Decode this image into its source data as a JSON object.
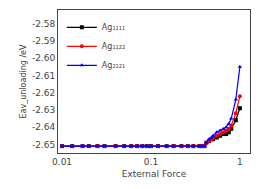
{
  "chart_data": {
    "type": "line",
    "xlabel": "External Force",
    "ylabel": "Eav_unloading /eV",
    "x": [
      0.01,
      0.013,
      0.017,
      0.02,
      0.025,
      0.03,
      0.04,
      0.05,
      0.06,
      0.07,
      0.08,
      0.09,
      0.1,
      0.12,
      0.15,
      0.18,
      0.22,
      0.26,
      0.3,
      0.35,
      0.38,
      0.4,
      0.42,
      0.45,
      0.48,
      0.5,
      0.55,
      0.6,
      0.65,
      0.7,
      0.75,
      0.8,
      0.9,
      1.0
    ],
    "series": [
      {
        "name": "Ag₁₁₁₁",
        "color": "black",
        "marker": "square",
        "values": [
          -2.651,
          -2.651,
          -2.651,
          -2.651,
          -2.651,
          -2.651,
          -2.651,
          -2.651,
          -2.651,
          -2.651,
          -2.651,
          -2.651,
          -2.651,
          -2.651,
          -2.651,
          -2.651,
          -2.651,
          -2.651,
          -2.651,
          -2.651,
          -2.651,
          -2.651,
          -2.649,
          -2.648,
          -2.647,
          -2.647,
          -2.646,
          -2.645,
          -2.644,
          -2.644,
          -2.643,
          -2.641,
          -2.636,
          -2.629
        ]
      },
      {
        "name": "Ag₁₁₂₂",
        "color": "red",
        "marker": "circle",
        "values": [
          -2.651,
          -2.651,
          -2.651,
          -2.651,
          -2.651,
          -2.651,
          -2.651,
          -2.651,
          -2.651,
          -2.651,
          -2.651,
          -2.651,
          -2.651,
          -2.651,
          -2.651,
          -2.651,
          -2.651,
          -2.651,
          -2.651,
          -2.651,
          -2.651,
          -2.651,
          -2.649,
          -2.648,
          -2.647,
          -2.646,
          -2.645,
          -2.644,
          -2.643,
          -2.642,
          -2.641,
          -2.639,
          -2.632,
          -2.622
        ]
      },
      {
        "name": "Ag₂₁₂₁",
        "color": "blue",
        "marker": "triangle-up",
        "values": [
          -2.651,
          -2.651,
          -2.651,
          -2.651,
          -2.651,
          -2.651,
          -2.651,
          -2.651,
          -2.651,
          -2.651,
          -2.651,
          -2.651,
          -2.651,
          -2.651,
          -2.651,
          -2.651,
          -2.651,
          -2.651,
          -2.651,
          -2.651,
          -2.651,
          -2.651,
          -2.649,
          -2.647,
          -2.646,
          -2.645,
          -2.643,
          -2.642,
          -2.641,
          -2.64,
          -2.638,
          -2.635,
          -2.624,
          -2.605
        ]
      }
    ],
    "log": "x",
    "xlim": [
      0.009,
      1.3
    ],
    "xticks": [
      0.01,
      0.1,
      1
    ],
    "ylim": [
      -2.655,
      -2.572
    ],
    "yticks": [
      -2.65,
      -2.64,
      -2.63,
      -2.62,
      -2.61,
      {
        "value": -2.6,
        "label": "-2.60"
      },
      -2.59,
      -2.58
    ],
    "grid": false,
    "legend": "upper left"
  }
}
